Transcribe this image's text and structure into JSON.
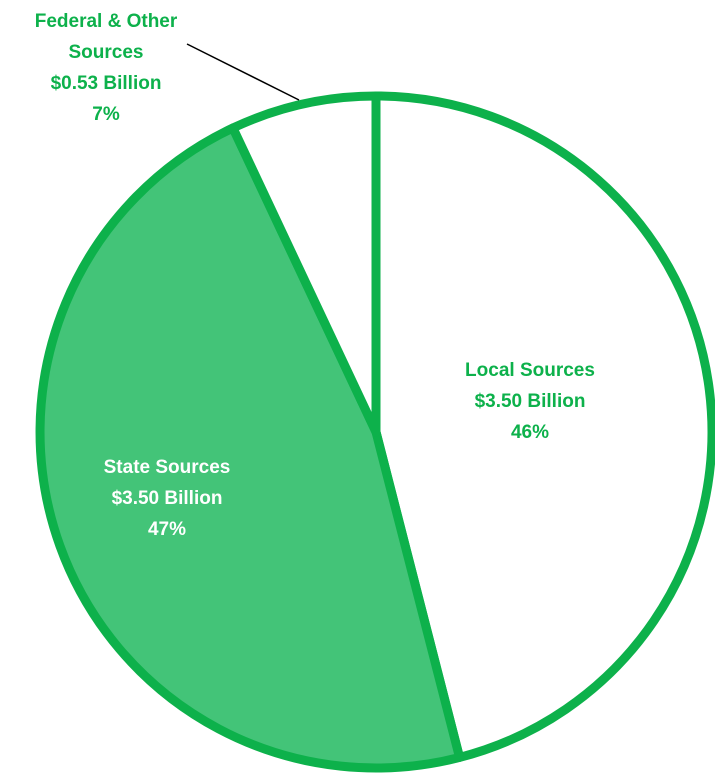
{
  "chart_data": {
    "type": "pie",
    "title": "",
    "slices": [
      {
        "label_lines": [
          "Local Sources",
          "$3.50 Billion",
          "46%"
        ],
        "name": "Local Sources",
        "amount": "$3.50 Billion",
        "percent": "46%",
        "value": 46,
        "fill": "#ffffff"
      },
      {
        "label_lines": [
          "State Sources",
          "$3.50 Billion",
          "47%"
        ],
        "name": "State Sources",
        "amount": "$3.50 Billion",
        "percent": "47%",
        "value": 47,
        "fill": "#43c478"
      },
      {
        "label_lines": [
          "Federal & Other",
          "Sources",
          "$0.53 Billion",
          "7%"
        ],
        "name": "Federal & Other Sources",
        "amount": "$0.53 Billion",
        "percent": "7%",
        "value": 7,
        "fill": "#ffffff"
      }
    ],
    "colors": {
      "outline": "#0db14b",
      "label_green": "#0db14b",
      "label_white": "#ffffff",
      "leader_line": "#000000"
    },
    "start_angle": "12 o'clock",
    "direction": "clockwise",
    "legend": "none"
  }
}
